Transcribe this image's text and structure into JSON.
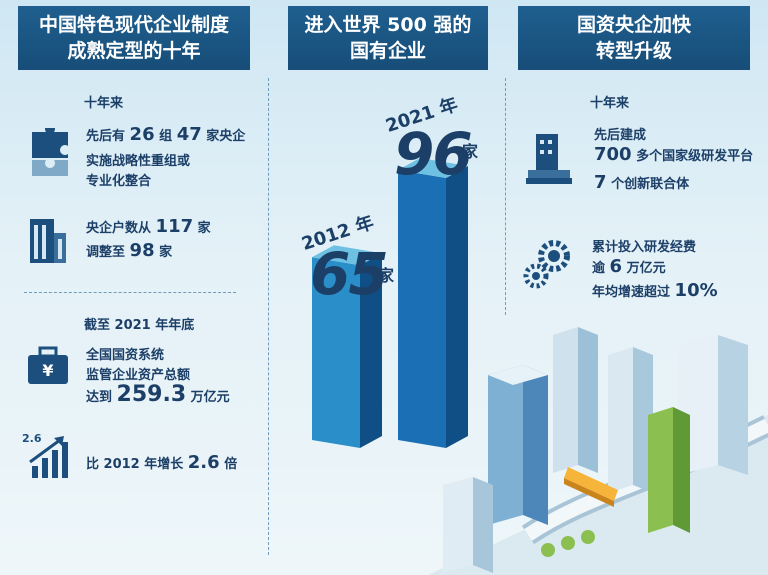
{
  "panels": {
    "left": {
      "title_line1": "中国特色现代企业制度",
      "title_line2": "成熟定型的十年"
    },
    "middle": {
      "title_line1": "进入世界 500 强的",
      "title_line2": "国有企业"
    },
    "right": {
      "title_line1": "国资央企加快",
      "title_line2": "转型升级"
    }
  },
  "left": {
    "section1_heading": "十年来",
    "item1": {
      "pre": "先后有",
      "n1": "26",
      "mid1": "组",
      "n2": "47",
      "post": "家央企",
      "line2": "实施战略性重组或",
      "line3": "专业化整合"
    },
    "item2": {
      "pre": "央企户数从",
      "n1": "117",
      "post1": "家",
      "line2_pre": "调整至",
      "n2": "98",
      "line2_post": "家"
    },
    "section2_heading": "截至 2021 年年底",
    "item3": {
      "line1": "全国国资系统",
      "line2": "监管企业资产总额",
      "line3_pre": "达到",
      "n": "259.3",
      "line3_post": "万亿元"
    },
    "item4": {
      "icon_value": "2.6",
      "pre": "比 2012 年增长",
      "n": "2.6",
      "post": "倍"
    }
  },
  "chart_data": {
    "type": "bar",
    "categories": [
      "2012 年",
      "2021 年"
    ],
    "values": [
      65,
      96
    ],
    "value_labels": [
      "65",
      "96"
    ],
    "unit": "家",
    "colors": [
      "#2a8fc9",
      "#1a6fb5"
    ]
  },
  "right": {
    "section_heading": "十年来",
    "item1": {
      "line1": "先后建成",
      "n1": "700",
      "line2_post": "多个国家级研发平台",
      "n2": "7",
      "line3_post": "个创新联合体"
    },
    "item2": {
      "line1": "累计投入研发经费",
      "line2_pre": "逾",
      "n1": "6",
      "line2_post": "万亿元",
      "line3_pre": "年均增速超过",
      "n2": "10%"
    }
  },
  "icons": [
    "puzzle-icon",
    "building-icon",
    "briefcase-yen-icon",
    "growth-chart-icon",
    "factory-icon",
    "gears-icon"
  ]
}
